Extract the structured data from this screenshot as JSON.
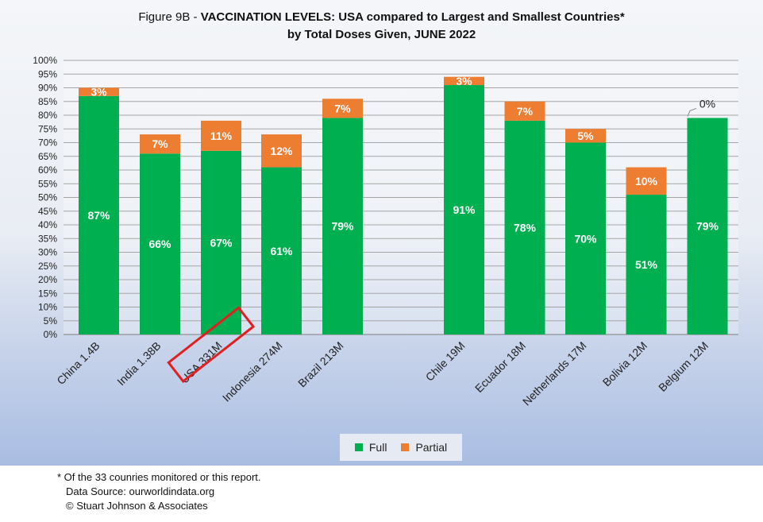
{
  "title": {
    "prefix": "Figure 9B - ",
    "bold": "VACCINATION LEVELS:  USA compared to Largest and Smallest Countries*",
    "line2": "by Total Doses Given, JUNE 2022"
  },
  "chart_data": {
    "type": "bar",
    "stacked": true,
    "categories": [
      "China 1.4B",
      "India 1.38B",
      "USA 331M",
      "Indonesia 274M",
      "Brazil 213M",
      "Chile 19M",
      "Ecuador 18M",
      "Netherlands 17M",
      "Bolivia 12M",
      "Belgium 12M"
    ],
    "series": [
      {
        "name": "Full",
        "color": "#00b050",
        "values": [
          87,
          66,
          67,
          61,
          79,
          91,
          78,
          70,
          51,
          79
        ]
      },
      {
        "name": "Partial",
        "color": "#ed7d31",
        "values": [
          3,
          7,
          11,
          12,
          7,
          3,
          7,
          5,
          10,
          0
        ]
      }
    ],
    "ylim": [
      0,
      100
    ],
    "yticks": [
      "0%",
      "5%",
      "10%",
      "15%",
      "20%",
      "25%",
      "30%",
      "35%",
      "40%",
      "45%",
      "50%",
      "55%",
      "60%",
      "65%",
      "70%",
      "75%",
      "80%",
      "85%",
      "90%",
      "95%",
      "100%"
    ],
    "grid": true,
    "legend_position": "bottom",
    "highlighted_category": "USA 331M",
    "highlight_color": "#e02020"
  },
  "footer": {
    "note": "* Of the 33 counries monitored or this report.",
    "source": "Data Source:  ourworldindata.org",
    "copyright": "© Stuart Johnson & Associates"
  }
}
